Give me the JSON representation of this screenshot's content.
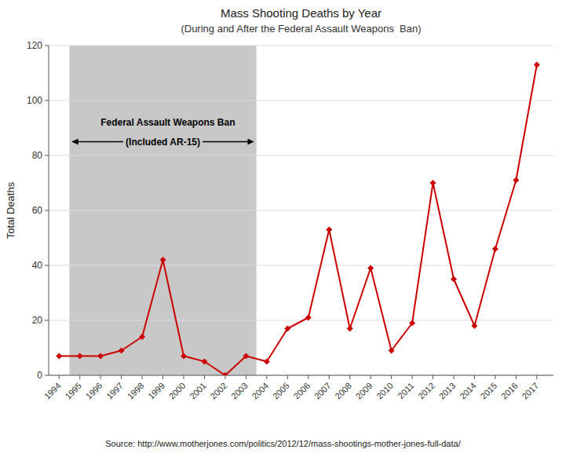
{
  "chart_data": {
    "type": "line",
    "title": "Mass Shooting Deaths by Year",
    "subtitle": "(During and After the Federal Assault Weapons  Ban)",
    "y_label": "Total Deaths",
    "x": [
      1994,
      1995,
      1996,
      1997,
      1998,
      1999,
      2000,
      2001,
      2002,
      2003,
      2004,
      2005,
      2006,
      2007,
      2008,
      2009,
      2010,
      2011,
      2012,
      2013,
      2014,
      2015,
      2016,
      2017
    ],
    "values": [
      7,
      7,
      7,
      9,
      14,
      42,
      7,
      5,
      0,
      7,
      5,
      17,
      21,
      53,
      17,
      39,
      9,
      19,
      70,
      35,
      18,
      46,
      71,
      113
    ],
    "color": "#cc0000",
    "marker": "diamond",
    "xlim": [
      1993.5,
      2017.8
    ],
    "xticks": [
      1994,
      1995,
      1996,
      1997,
      1998,
      1999,
      2000,
      2001,
      2002,
      2003,
      2004,
      2005,
      2006,
      2007,
      2008,
      2009,
      2010,
      2011,
      2012,
      2013,
      2014,
      2015,
      2016,
      2017
    ],
    "ylim": [
      0,
      120
    ],
    "yticks": [
      0,
      20,
      40,
      60,
      80,
      100,
      120
    ],
    "grid": true,
    "span": {
      "start": 1994.5,
      "end": 2003.5,
      "color": "#c8c8c8",
      "arrow_y": 85
    },
    "annotations": [
      {
        "text": "Federal Assault Weapons Ban",
        "x": 1996.0,
        "y": 92
      },
      {
        "text": "(Included AR-15)",
        "x": 1999.0,
        "y": 85
      }
    ],
    "source": "Source: http://www.motherjones.com/politics/2012/12/mass-shootings-mother-jones-full-data/"
  }
}
